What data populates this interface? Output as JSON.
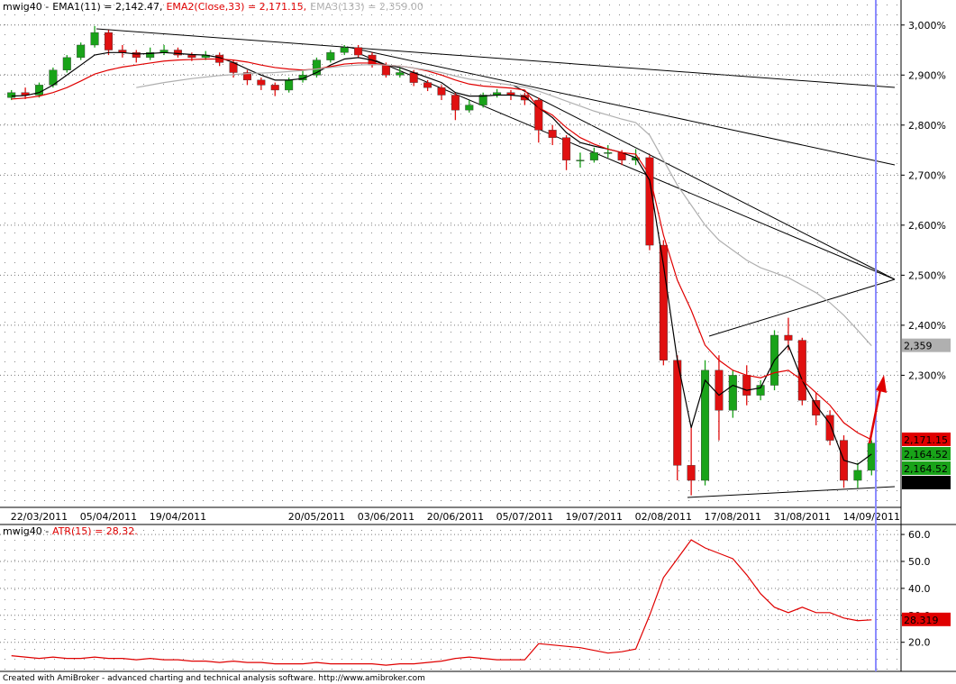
{
  "chart_data": [
    {
      "type": "candlestick",
      "title": "mwig40 -",
      "categories": [
        null,
        null,
        "22/03/2011",
        null,
        null,
        null,
        null,
        "05/04/2011",
        null,
        null,
        null,
        null,
        "19/04/2011",
        null,
        null,
        null,
        null,
        null,
        null,
        null,
        null,
        null,
        "20/05/2011",
        null,
        null,
        null,
        null,
        "03/06/2011",
        null,
        null,
        null,
        null,
        "20/06/2011",
        null,
        null,
        null,
        null,
        "05/07/2011",
        null,
        null,
        null,
        null,
        "19/07/2011",
        null,
        null,
        null,
        null,
        "02/08/2011",
        null,
        null,
        null,
        null,
        "17/08/2011",
        null,
        null,
        null,
        null,
        "31/08/2011",
        null,
        null,
        null,
        null,
        "14/09/2011"
      ],
      "open": [
        2855,
        2865,
        2860,
        2880,
        2910,
        2935,
        2960,
        2985,
        2950,
        2945,
        2935,
        2945,
        2950,
        2940,
        2935,
        2940,
        2925,
        2905,
        2890,
        2880,
        2870,
        2890,
        2900,
        2930,
        2945,
        2955,
        2940,
        2920,
        2900,
        2905,
        2885,
        2875,
        2860,
        2830,
        2840,
        2860,
        2865,
        2860,
        2850,
        2790,
        2775,
        2730,
        2730,
        2745,
        2745,
        2730,
        2735,
        2560,
        2330,
        2120,
        2090,
        2310,
        2230,
        2300,
        2260,
        2280,
        2380,
        2370,
        2250,
        2220,
        2170,
        2090,
        2110
      ],
      "high": [
        2870,
        2875,
        2885,
        2915,
        2940,
        2965,
        2998,
        2990,
        2960,
        2950,
        2955,
        2960,
        2955,
        2945,
        2948,
        2945,
        2930,
        2910,
        2895,
        2885,
        2895,
        2910,
        2935,
        2950,
        2960,
        2960,
        2945,
        2925,
        2915,
        2910,
        2890,
        2880,
        2865,
        2850,
        2865,
        2872,
        2870,
        2865,
        2855,
        2800,
        2780,
        2745,
        2755,
        2760,
        2750,
        2752,
        2740,
        2570,
        2340,
        2200,
        2330,
        2340,
        2310,
        2320,
        2290,
        2390,
        2415,
        2375,
        2265,
        2230,
        2180,
        2125,
        2170
      ],
      "low": [
        2850,
        2852,
        2855,
        2875,
        2905,
        2930,
        2955,
        2940,
        2935,
        2925,
        2930,
        2940,
        2935,
        2928,
        2930,
        2918,
        2895,
        2880,
        2870,
        2858,
        2865,
        2885,
        2895,
        2925,
        2940,
        2935,
        2915,
        2895,
        2895,
        2878,
        2868,
        2850,
        2810,
        2825,
        2835,
        2855,
        2850,
        2840,
        2765,
        2760,
        2710,
        2715,
        2725,
        2735,
        2720,
        2720,
        2550,
        2320,
        2090,
        2060,
        2080,
        2170,
        2215,
        2240,
        2250,
        2270,
        2350,
        2240,
        2200,
        2160,
        2075,
        2075,
        2100
      ],
      "close": [
        2865,
        2860,
        2880,
        2910,
        2935,
        2960,
        2985,
        2950,
        2945,
        2935,
        2945,
        2950,
        2940,
        2935,
        2940,
        2925,
        2905,
        2890,
        2880,
        2870,
        2890,
        2900,
        2930,
        2945,
        2955,
        2940,
        2920,
        2900,
        2905,
        2885,
        2875,
        2860,
        2830,
        2840,
        2860,
        2865,
        2860,
        2850,
        2790,
        2775,
        2730,
        2730,
        2745,
        2745,
        2730,
        2735,
        2560,
        2330,
        2120,
        2090,
        2310,
        2230,
        2300,
        2260,
        2280,
        2380,
        2370,
        2250,
        2220,
        2170,
        2090,
        2110,
        2164.52
      ],
      "up_color": "#19a319",
      "down_color": "#e01010",
      "close_labels": [
        "2,164.52",
        "2,164.52"
      ],
      "close_label_color": "#19a319",
      "series": [
        {
          "name": "EMA1(11) = 2,142.47,",
          "color": "#000000",
          "value_label": "2,142.47",
          "values": [
            2858,
            2859,
            2865,
            2880,
            2900,
            2920,
            2940,
            2945,
            2945,
            2942,
            2943,
            2945,
            2943,
            2941,
            2940,
            2935,
            2925,
            2912,
            2900,
            2890,
            2890,
            2893,
            2905,
            2920,
            2932,
            2935,
            2930,
            2920,
            2915,
            2905,
            2895,
            2885,
            2865,
            2858,
            2858,
            2860,
            2860,
            2857,
            2835,
            2815,
            2785,
            2765,
            2758,
            2752,
            2745,
            2735,
            2690,
            2520,
            2330,
            2195,
            2290,
            2260,
            2280,
            2270,
            2275,
            2330,
            2360,
            2290,
            2240,
            2203,
            2130,
            2122,
            2142.47
          ]
        },
        {
          "name": "EMA2(Close,33) = 2,171.15,",
          "color": "#e00000",
          "value_label": "2,171.15",
          "values": [
            2852,
            2854,
            2858,
            2865,
            2875,
            2888,
            2902,
            2910,
            2916,
            2920,
            2924,
            2928,
            2930,
            2931,
            2932,
            2932,
            2930,
            2926,
            2920,
            2915,
            2912,
            2910,
            2912,
            2917,
            2922,
            2924,
            2924,
            2920,
            2918,
            2914,
            2908,
            2900,
            2890,
            2882,
            2878,
            2876,
            2874,
            2870,
            2835,
            2820,
            2795,
            2775,
            2762,
            2752,
            2745,
            2742,
            2700,
            2580,
            2490,
            2430,
            2360,
            2330,
            2310,
            2300,
            2295,
            2305,
            2310,
            2290,
            2265,
            2240,
            2205,
            2185,
            2171.15
          ]
        },
        {
          "name": "EMA3(133) = 2,359.00",
          "color": "#b0b0b0",
          "value_label": "2,359",
          "values": [
            null,
            null,
            null,
            null,
            null,
            null,
            null,
            null,
            null,
            2875,
            2880,
            2885,
            2889,
            2893,
            2896,
            2899,
            2901,
            2903,
            2904,
            2905,
            2907,
            2909,
            2912,
            2915,
            2918,
            2920,
            2921,
            2920,
            2918,
            2914,
            2910,
            2905,
            2898,
            2892,
            2888,
            2884,
            2880,
            2876,
            2868,
            2858,
            2848,
            2838,
            2828,
            2820,
            2812,
            2805,
            2780,
            2730,
            2680,
            2640,
            2600,
            2570,
            2550,
            2530,
            2515,
            2505,
            2495,
            2480,
            2465,
            2445,
            2420,
            2390,
            2359
          ]
        }
      ],
      "ylim": [
        2036,
        3050
      ],
      "yticks": [
        {
          "value": 2300,
          "label": "2,300%"
        },
        {
          "value": 2400,
          "label": "2,400%"
        },
        {
          "value": 2500,
          "label": "2,500%"
        },
        {
          "value": 2600,
          "label": "2,600%"
        },
        {
          "value": 2700,
          "label": "2,700%"
        },
        {
          "value": 2800,
          "label": "2,800%"
        },
        {
          "value": 2900,
          "label": "2,900%"
        },
        {
          "value": 3000,
          "label": "3,000%"
        }
      ],
      "grid": true
    },
    {
      "type": "line",
      "title": "mwig40 -",
      "series": [
        {
          "name": "ATR(15) = 28.32.",
          "color": "#e00000",
          "value_label": "28.319",
          "values": [
            15,
            14.5,
            14,
            14.5,
            14,
            14,
            14.5,
            14,
            14,
            13.5,
            14,
            13.5,
            13.5,
            13,
            13,
            12.5,
            13,
            12.5,
            12.5,
            12,
            12,
            12,
            12.5,
            12,
            12,
            12,
            12,
            11.5,
            12,
            12,
            12.5,
            13,
            14,
            14.5,
            14,
            13.5,
            13.5,
            13.5,
            19.5,
            19,
            18.5,
            18,
            17,
            16,
            16.5,
            17.5,
            30,
            44,
            51,
            58,
            55,
            53,
            51,
            45,
            38,
            33,
            31,
            33,
            31,
            31,
            29,
            28,
            28.319
          ]
        }
      ],
      "ylim": [
        9.2,
        63.7
      ],
      "yticks": [
        {
          "value": 20,
          "label": "20.0"
        },
        {
          "value": 30,
          "label": "30.0"
        },
        {
          "value": 40,
          "label": "40.0"
        },
        {
          "value": 50,
          "label": "50.0"
        },
        {
          "value": 60,
          "label": "60.0"
        }
      ],
      "grid": true
    }
  ],
  "footer": "Created with AmiBroker - advanced charting and technical analysis software. http://www.amibroker.com"
}
